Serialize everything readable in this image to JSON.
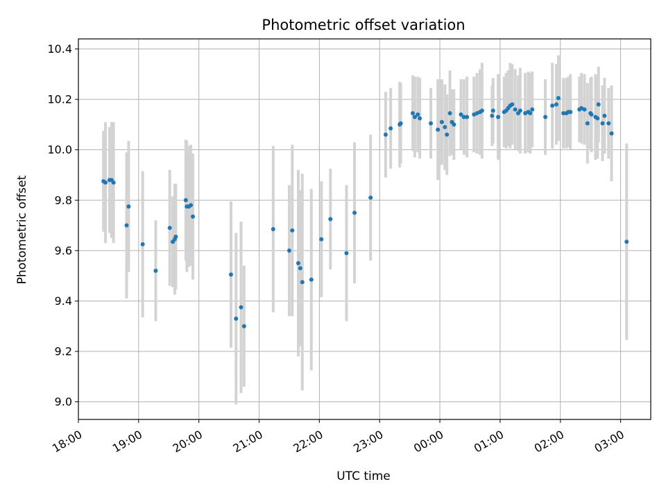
{
  "chart_data": {
    "type": "scatter",
    "title": "Photometric offset variation",
    "xlabel": "UTC time",
    "ylabel": "Photometric offset",
    "xlim": [
      "18:00",
      "03:30"
    ],
    "ylim": [
      8.93,
      10.44
    ],
    "grid": true,
    "legend": null,
    "x_ticks": [
      "18:00",
      "19:00",
      "20:00",
      "21:00",
      "22:00",
      "23:00",
      "00:00",
      "01:00",
      "02:00",
      "03:00"
    ],
    "y_ticks": [
      9.0,
      9.2,
      9.4,
      9.6,
      9.8,
      10.0,
      10.2,
      10.4
    ],
    "y_tick_labels": [
      "9.0",
      "9.2",
      "9.4",
      "9.6",
      "9.8",
      "10.0",
      "10.2",
      "10.4"
    ],
    "colors": {
      "points": "#1f77b4",
      "error_bars": "#d3d3d3",
      "grid": "#b0b0b0"
    },
    "series": [
      {
        "marker": "point",
        "error_bars": true,
        "points": [
          {
            "t": "18:25",
            "y": 9.875,
            "err": 0.2
          },
          {
            "t": "18:27",
            "y": 9.87,
            "err": 0.24
          },
          {
            "t": "18:31",
            "y": 9.88,
            "err": 0.21
          },
          {
            "t": "18:33",
            "y": 9.88,
            "err": 0.23
          },
          {
            "t": "18:35",
            "y": 9.87,
            "err": 0.24
          },
          {
            "t": "18:48",
            "y": 9.7,
            "err": 0.29
          },
          {
            "t": "18:50",
            "y": 9.775,
            "err": 0.26
          },
          {
            "t": "19:04",
            "y": 9.625,
            "err": 0.29
          },
          {
            "t": "19:17",
            "y": 9.52,
            "err": 0.2
          },
          {
            "t": "19:31",
            "y": 9.69,
            "err": 0.23
          },
          {
            "t": "19:34",
            "y": 9.635,
            "err": 0.18
          },
          {
            "t": "19:36",
            "y": 9.645,
            "err": 0.22
          },
          {
            "t": "19:37",
            "y": 9.655,
            "err": 0.21
          },
          {
            "t": "19:47",
            "y": 9.8,
            "err": 0.24
          },
          {
            "t": "19:48",
            "y": 9.775,
            "err": 0.26
          },
          {
            "t": "19:50",
            "y": 9.775,
            "err": 0.24
          },
          {
            "t": "19:52",
            "y": 9.78,
            "err": 0.24
          },
          {
            "t": "19:54",
            "y": 9.735,
            "err": 0.25
          },
          {
            "t": "20:32",
            "y": 9.505,
            "err": 0.29
          },
          {
            "t": "20:37",
            "y": 9.33,
            "err": 0.34
          },
          {
            "t": "20:42",
            "y": 9.375,
            "err": 0.34
          },
          {
            "t": "20:45",
            "y": 9.3,
            "err": 0.24
          },
          {
            "t": "21:14",
            "y": 9.685,
            "err": 0.33
          },
          {
            "t": "21:30",
            "y": 9.6,
            "err": 0.26
          },
          {
            "t": "21:33",
            "y": 9.68,
            "err": 0.34
          },
          {
            "t": "21:39",
            "y": 9.55,
            "err": 0.37
          },
          {
            "t": "21:41",
            "y": 9.53,
            "err": 0.31
          },
          {
            "t": "21:43",
            "y": 9.475,
            "err": 0.43
          },
          {
            "t": "21:52",
            "y": 9.485,
            "err": 0.36
          },
          {
            "t": "22:02",
            "y": 9.645,
            "err": 0.23
          },
          {
            "t": "22:11",
            "y": 9.725,
            "err": 0.2
          },
          {
            "t": "22:27",
            "y": 9.59,
            "err": 0.27
          },
          {
            "t": "22:35",
            "y": 9.75,
            "err": 0.28
          },
          {
            "t": "22:51",
            "y": 9.81,
            "err": 0.25
          },
          {
            "t": "23:06",
            "y": 10.06,
            "err": 0.17
          },
          {
            "t": "23:11",
            "y": 10.085,
            "err": 0.16
          },
          {
            "t": "23:20",
            "y": 10.1,
            "err": 0.17
          },
          {
            "t": "23:21",
            "y": 10.105,
            "err": 0.16
          },
          {
            "t": "23:33",
            "y": 10.145,
            "err": 0.15
          },
          {
            "t": "23:35",
            "y": 10.13,
            "err": 0.16
          },
          {
            "t": "23:38",
            "y": 10.14,
            "err": 0.15
          },
          {
            "t": "23:40",
            "y": 10.125,
            "err": 0.16
          },
          {
            "t": "23:51",
            "y": 10.105,
            "err": 0.14
          },
          {
            "t": "23:58",
            "y": 10.08,
            "err": 0.2
          },
          {
            "t": "00:02",
            "y": 10.11,
            "err": 0.17
          },
          {
            "t": "00:05",
            "y": 10.09,
            "err": 0.17
          },
          {
            "t": "00:07",
            "y": 10.06,
            "err": 0.16
          },
          {
            "t": "00:10",
            "y": 10.145,
            "err": 0.17
          },
          {
            "t": "00:12",
            "y": 10.11,
            "err": 0.13
          },
          {
            "t": "00:14",
            "y": 10.1,
            "err": 0.14
          },
          {
            "t": "00:21",
            "y": 10.14,
            "err": 0.14
          },
          {
            "t": "00:24",
            "y": 10.13,
            "err": 0.15
          },
          {
            "t": "00:27",
            "y": 10.13,
            "err": 0.16
          },
          {
            "t": "00:34",
            "y": 10.14,
            "err": 0.15
          },
          {
            "t": "00:37",
            "y": 10.145,
            "err": 0.16
          },
          {
            "t": "00:40",
            "y": 10.15,
            "err": 0.17
          },
          {
            "t": "00:42",
            "y": 10.155,
            "err": 0.19
          },
          {
            "t": "00:52",
            "y": 10.135,
            "err": 0.12
          },
          {
            "t": "00:53",
            "y": 10.155,
            "err": 0.13
          },
          {
            "t": "00:58",
            "y": 10.13,
            "err": 0.17
          },
          {
            "t": "01:04",
            "y": 10.15,
            "err": 0.14
          },
          {
            "t": "01:06",
            "y": 10.155,
            "err": 0.15
          },
          {
            "t": "01:08",
            "y": 10.165,
            "err": 0.15
          },
          {
            "t": "01:10",
            "y": 10.175,
            "err": 0.17
          },
          {
            "t": "01:12",
            "y": 10.18,
            "err": 0.16
          },
          {
            "t": "01:15",
            "y": 10.16,
            "err": 0.16
          },
          {
            "t": "01:18",
            "y": 10.145,
            "err": 0.15
          },
          {
            "t": "01:20",
            "y": 10.155,
            "err": 0.17
          },
          {
            "t": "01:25",
            "y": 10.145,
            "err": 0.16
          },
          {
            "t": "01:28",
            "y": 10.15,
            "err": 0.16
          },
          {
            "t": "01:30",
            "y": 10.145,
            "err": 0.16
          },
          {
            "t": "01:32",
            "y": 10.16,
            "err": 0.15
          },
          {
            "t": "01:45",
            "y": 10.13,
            "err": 0.15
          },
          {
            "t": "01:52",
            "y": 10.175,
            "err": 0.17
          },
          {
            "t": "01:56",
            "y": 10.18,
            "err": 0.16
          },
          {
            "t": "01:58",
            "y": 10.205,
            "err": 0.17
          },
          {
            "t": "02:03",
            "y": 10.145,
            "err": 0.14
          },
          {
            "t": "02:06",
            "y": 10.145,
            "err": 0.14
          },
          {
            "t": "02:08",
            "y": 10.15,
            "err": 0.14
          },
          {
            "t": "02:10",
            "y": 10.15,
            "err": 0.15
          },
          {
            "t": "02:19",
            "y": 10.16,
            "err": 0.13
          },
          {
            "t": "02:21",
            "y": 10.165,
            "err": 0.14
          },
          {
            "t": "02:24",
            "y": 10.16,
            "err": 0.14
          },
          {
            "t": "02:27",
            "y": 10.105,
            "err": 0.16
          },
          {
            "t": "02:30",
            "y": 10.145,
            "err": 0.14
          },
          {
            "t": "02:31",
            "y": 10.14,
            "err": 0.15
          },
          {
            "t": "02:35",
            "y": 10.13,
            "err": 0.17
          },
          {
            "t": "02:37",
            "y": 10.125,
            "err": 0.16
          },
          {
            "t": "02:38",
            "y": 10.18,
            "err": 0.15
          },
          {
            "t": "02:42",
            "y": 10.105,
            "err": 0.15
          },
          {
            "t": "02:44",
            "y": 10.135,
            "err": 0.15
          },
          {
            "t": "02:48",
            "y": 10.105,
            "err": 0.14
          },
          {
            "t": "02:51",
            "y": 10.065,
            "err": 0.19
          },
          {
            "t": "03:06",
            "y": 9.635,
            "err": 0.39
          }
        ]
      }
    ]
  }
}
